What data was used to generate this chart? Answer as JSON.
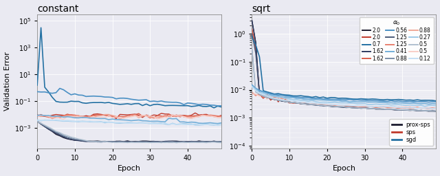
{
  "title_left": "constant",
  "title_right": "sqrt",
  "xlabel": "Epoch",
  "ylabel": "Validation Error",
  "n_epochs": 50,
  "alpha0_proxsps": [
    2.0,
    1.62,
    1.25,
    0.88,
    0.5
  ],
  "alpha0_sps": [
    2.0,
    1.62,
    1.25,
    0.88,
    0.5
  ],
  "alpha0_sgd": [
    0.7,
    0.56,
    0.41,
    0.27,
    0.12
  ],
  "proxsps_colors": [
    "#1a1a2e",
    "#2e3a5e",
    "#4a5a78",
    "#7a8fa8",
    "#b0c0d0"
  ],
  "sps_colors": [
    "#c0392b",
    "#d95f4b",
    "#e88070",
    "#f0a898",
    "#f8cec8"
  ],
  "sgd_colors": [
    "#2471a3",
    "#4a90c4",
    "#72aed8",
    "#9ecae8",
    "#c5e0f5"
  ],
  "background_color": "#eaeaf2",
  "grid_color": "#ffffff",
  "ylim_left": [
    3e-05,
    300000.0
  ],
  "ylim_right": [
    8e-05,
    5.0
  ],
  "xlim": [
    0,
    49
  ],
  "legend_alpha0_title": "$\\alpha_0$",
  "legend_method_labels": [
    "prox-sps",
    "sps",
    "sgd"
  ]
}
